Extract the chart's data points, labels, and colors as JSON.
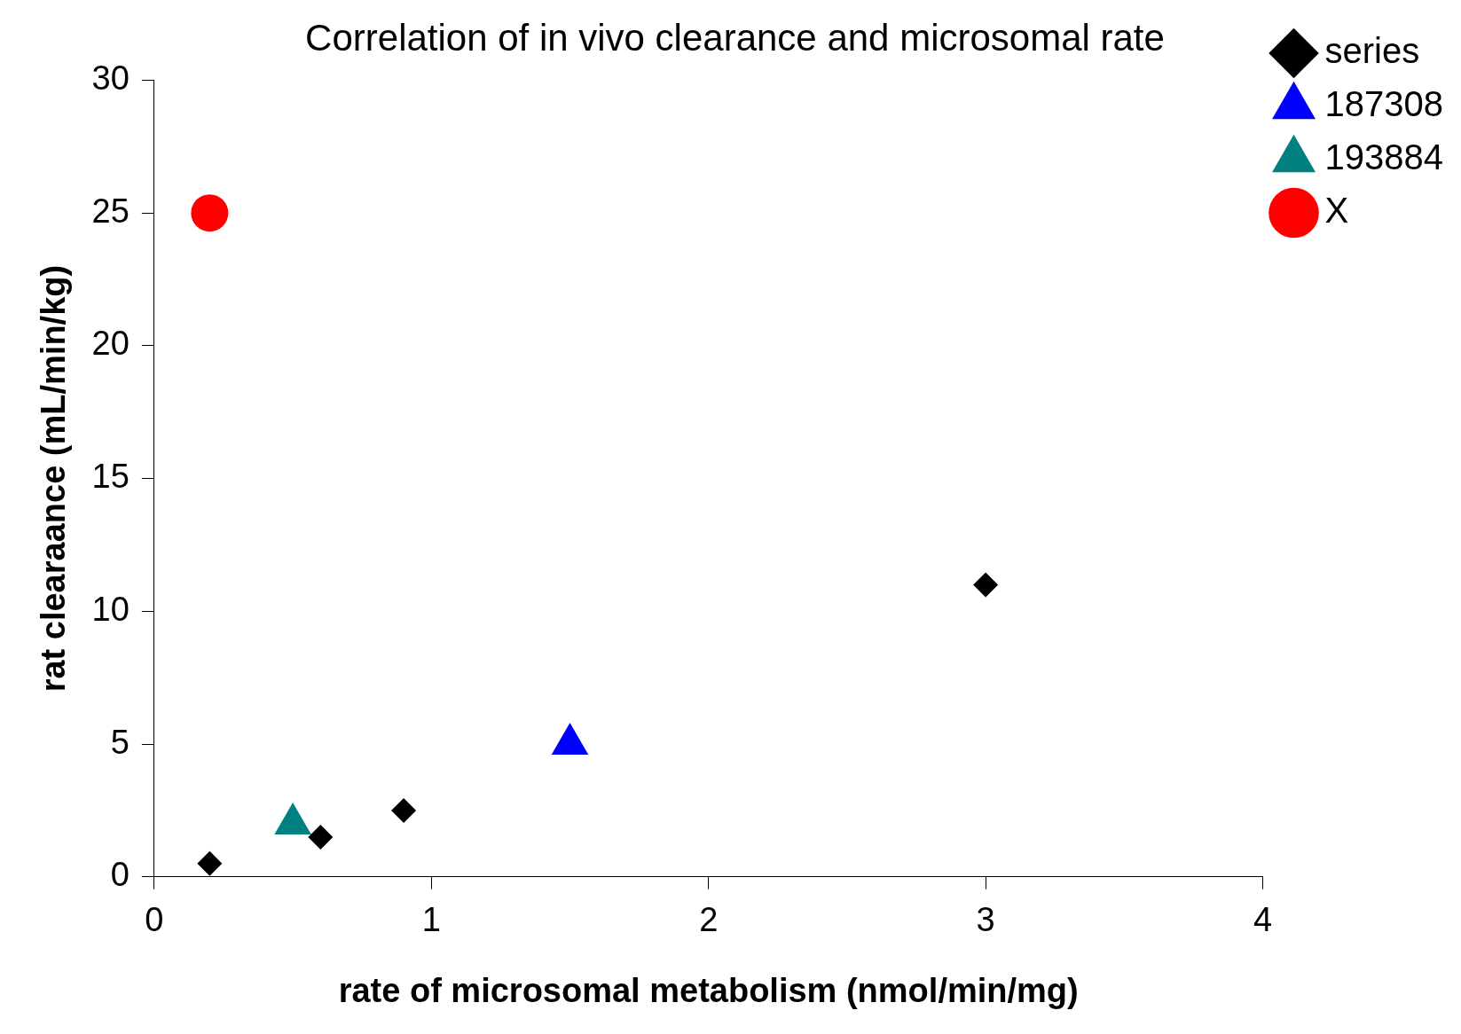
{
  "chart_data": {
    "type": "scatter",
    "title": "Correlation of in vivo clearance and microsomal rate",
    "xlabel": "rate of microsomal metabolism (nmol/min/mg)",
    "ylabel": "rat clearaance (mL/min/kg)",
    "series": [
      {
        "name": "series",
        "color": "#000000",
        "marker": "diamond",
        "x": [
          0.2,
          0.6,
          0.9,
          3.0
        ],
        "values": [
          0.5,
          1.5,
          2.5,
          11.0
        ]
      },
      {
        "name": "187308",
        "color": "#0000ff",
        "marker": "triangle",
        "x": [
          1.5
        ],
        "values": [
          5
        ]
      },
      {
        "name": "193884",
        "color": "#008080",
        "marker": "triangle",
        "x": [
          0.5
        ],
        "values": [
          2
        ]
      },
      {
        "name": "X",
        "color": "#ff0000",
        "marker": "circle",
        "x": [
          0.2
        ],
        "values": [
          25
        ]
      }
    ],
    "xlim": [
      0,
      4
    ],
    "xticks": [
      0,
      1,
      2,
      3,
      4
    ],
    "ylim": [
      0,
      30
    ],
    "yticks": [
      0,
      5,
      10,
      15,
      20,
      25,
      30
    ],
    "grid": false,
    "legend": "top right"
  }
}
